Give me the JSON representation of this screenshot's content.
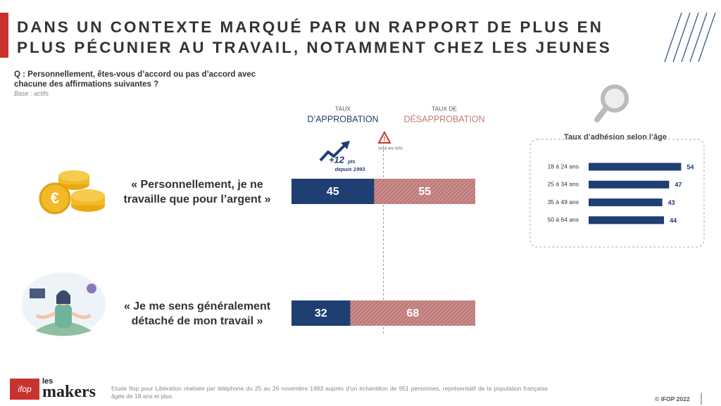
{
  "header": {
    "title": "DANS UN CONTEXTE MARQUÉ PAR UN RAPPORT DE PLUS EN PLUS PÉCUNIER AU TRAVAIL, NOTAMMENT CHEZ LES JEUNES",
    "question": "Q : Personnellement, êtes-vous d’accord ou pas d’accord avec chacune des affirmations suivantes ?",
    "base": "Base : actifs"
  },
  "chart_data": [
    {
      "type": "stacked-barh",
      "categories": [
        "« Personnellement, je ne travaille que pour l’argent »",
        "« Je me sens généralement détaché de mon travail »"
      ],
      "series_label_prefixes": [
        "TAUX",
        "TAUX DE"
      ],
      "series": [
        {
          "name": "D’APPROBATION",
          "color": "#1f3f73",
          "values": [
            45,
            32
          ]
        },
        {
          "name": "DÉSAPPROBATION",
          "color": "#c07a7a",
          "values": [
            55,
            68
          ]
        }
      ],
      "xlim": [
        0,
        100
      ],
      "reference_line": {
        "value": 50,
        "label": "Seuil des 50%"
      },
      "trend_annotation": {
        "change": "+12",
        "unit": "pts",
        "since": "depuis 1993"
      }
    },
    {
      "type": "barh",
      "title": "Taux d’adhésion selon l’âge",
      "categories": [
        "18 à 24 ans",
        "25 à 34 ans",
        "35 à 49 ans",
        "50 à 64 ans"
      ],
      "values": [
        54,
        47,
        43,
        44
      ],
      "color": "#1f3f73",
      "xlim": [
        0,
        60
      ]
    }
  ],
  "footer": {
    "source": "Etude Ifop pour Libération réalisée par téléphone du 25 au 26 novembre 1993 auprès d’un échantillon de 951 personnes, représentatif de la population française âgée de 18 ans et plus.",
    "copyright": "© IFOP 2022",
    "logos": [
      "ifop",
      "les",
      "makers"
    ]
  }
}
